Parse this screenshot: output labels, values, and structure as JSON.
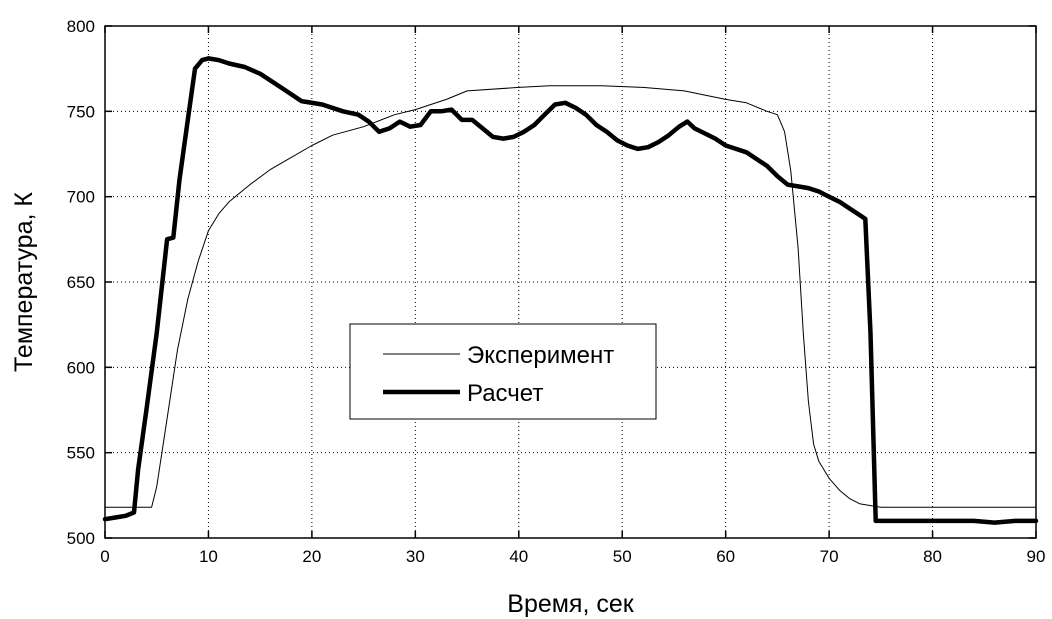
{
  "chart_data": {
    "type": "line",
    "title": "",
    "xlabel": "Время, сек",
    "ylabel": "Температура, К",
    "xlim": [
      0,
      90
    ],
    "ylim": [
      500,
      800
    ],
    "xticks": [
      0,
      10,
      20,
      30,
      40,
      50,
      60,
      70,
      80,
      90
    ],
    "yticks": [
      500,
      550,
      600,
      650,
      700,
      750,
      800
    ],
    "grid": true,
    "legend_placement": "center-left",
    "series": [
      {
        "name": "Эксперимент",
        "color": "#000000",
        "style": "thin",
        "points": [
          [
            0,
            518
          ],
          [
            4.5,
            518
          ],
          [
            5,
            530
          ],
          [
            6,
            570
          ],
          [
            7,
            610
          ],
          [
            8,
            640
          ],
          [
            9,
            662
          ],
          [
            10,
            680
          ],
          [
            11,
            690
          ],
          [
            12,
            697
          ],
          [
            14,
            707
          ],
          [
            16,
            716
          ],
          [
            18,
            723
          ],
          [
            20,
            730
          ],
          [
            22,
            736
          ],
          [
            25,
            741
          ],
          [
            28,
            748
          ],
          [
            30,
            751
          ],
          [
            33,
            757
          ],
          [
            35,
            762
          ],
          [
            40,
            764
          ],
          [
            43,
            765
          ],
          [
            48,
            765
          ],
          [
            52,
            764
          ],
          [
            56,
            762
          ],
          [
            60,
            757
          ],
          [
            62,
            755
          ],
          [
            64,
            750
          ],
          [
            65,
            748
          ],
          [
            65.7,
            738
          ],
          [
            66.3,
            715
          ],
          [
            67,
            670
          ],
          [
            67.5,
            620
          ],
          [
            68,
            580
          ],
          [
            68.5,
            555
          ],
          [
            69,
            545
          ],
          [
            70,
            535
          ],
          [
            71,
            528
          ],
          [
            72,
            523
          ],
          [
            73,
            520
          ],
          [
            75,
            518
          ],
          [
            90,
            518
          ]
        ]
      },
      {
        "name": "Расчет",
        "color": "#000000",
        "style": "thick",
        "points": [
          [
            0,
            511
          ],
          [
            1,
            512
          ],
          [
            2,
            513
          ],
          [
            2.8,
            515
          ],
          [
            3.2,
            540
          ],
          [
            4,
            575
          ],
          [
            5,
            620
          ],
          [
            6,
            675
          ],
          [
            6.6,
            676
          ],
          [
            7.2,
            710
          ],
          [
            8,
            745
          ],
          [
            8.7,
            775
          ],
          [
            9.4,
            780
          ],
          [
            10,
            781
          ],
          [
            11,
            780
          ],
          [
            12,
            778
          ],
          [
            13.5,
            776
          ],
          [
            15,
            772
          ],
          [
            17,
            764
          ],
          [
            19,
            756
          ],
          [
            21,
            754
          ],
          [
            23,
            750
          ],
          [
            24.5,
            748
          ],
          [
            25.5,
            744
          ],
          [
            26.5,
            738
          ],
          [
            27.5,
            740
          ],
          [
            28.5,
            744
          ],
          [
            29.5,
            741
          ],
          [
            30.5,
            742
          ],
          [
            31.5,
            750
          ],
          [
            32.5,
            750
          ],
          [
            33.5,
            751
          ],
          [
            34.5,
            745
          ],
          [
            35.5,
            745
          ],
          [
            36.5,
            740
          ],
          [
            37.5,
            735
          ],
          [
            38.5,
            734
          ],
          [
            39.5,
            735
          ],
          [
            40.5,
            738
          ],
          [
            41.5,
            742
          ],
          [
            42.5,
            748
          ],
          [
            43.5,
            754
          ],
          [
            44.5,
            755
          ],
          [
            45.5,
            752
          ],
          [
            46.5,
            748
          ],
          [
            47.5,
            742
          ],
          [
            48.5,
            738
          ],
          [
            49.5,
            733
          ],
          [
            50.5,
            730
          ],
          [
            51.5,
            728
          ],
          [
            52.5,
            729
          ],
          [
            53.5,
            732
          ],
          [
            54.5,
            736
          ],
          [
            55.5,
            741
          ],
          [
            56.3,
            744
          ],
          [
            57,
            740
          ],
          [
            58,
            737
          ],
          [
            59,
            734
          ],
          [
            60,
            730
          ],
          [
            61,
            728
          ],
          [
            62,
            726
          ],
          [
            63,
            722
          ],
          [
            64,
            718
          ],
          [
            65,
            712
          ],
          [
            66,
            707
          ],
          [
            67,
            706
          ],
          [
            68,
            705
          ],
          [
            69,
            703
          ],
          [
            70,
            700
          ],
          [
            71,
            697
          ],
          [
            72,
            693
          ],
          [
            73,
            689
          ],
          [
            73.5,
            687
          ],
          [
            74,
            620
          ],
          [
            74.5,
            510
          ],
          [
            80,
            510
          ],
          [
            84,
            510
          ],
          [
            86,
            509
          ],
          [
            88,
            510
          ],
          [
            90,
            510
          ]
        ]
      }
    ]
  }
}
